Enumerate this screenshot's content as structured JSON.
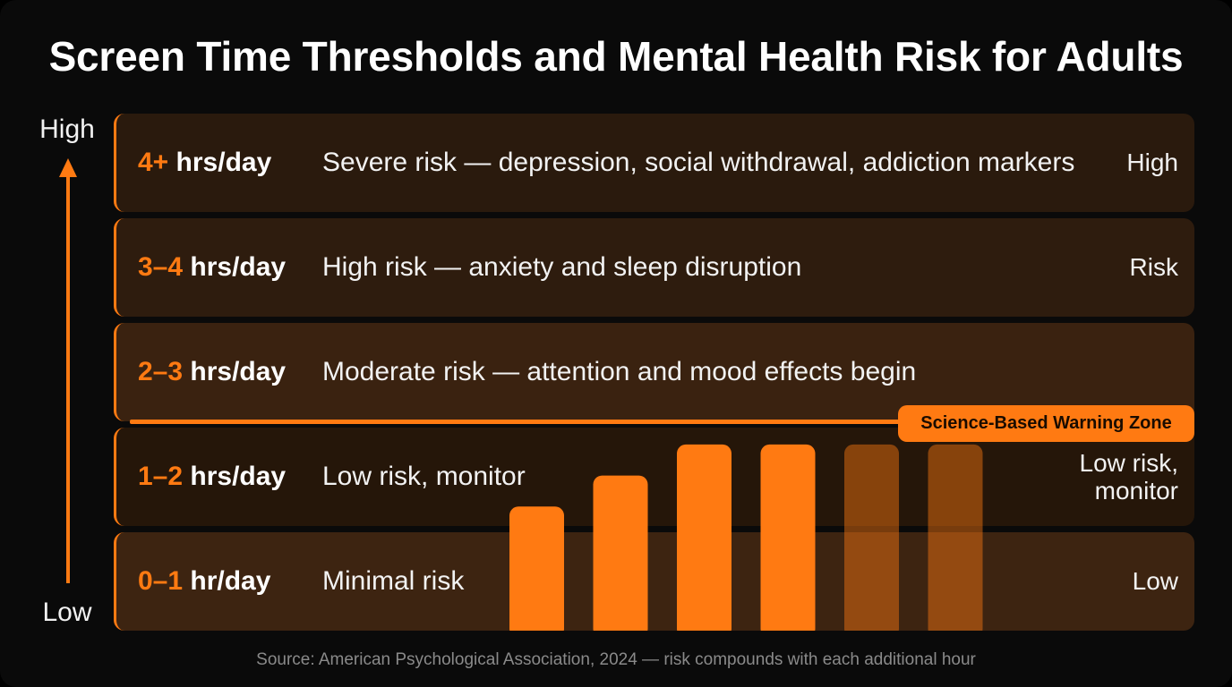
{
  "chart_data": {
    "type": "bar",
    "title": "Screen Time Thresholds and Mental Health Risk for Adults",
    "axis_labels": {
      "top": "High",
      "bottom": "Low"
    },
    "tiers": [
      {
        "range_num": "4+",
        "range_unit": " hrs/day",
        "description": "Severe risk — depression, social withdrawal, addiction markers",
        "level": [
          "High"
        ]
      },
      {
        "range_num": "3–4",
        "range_unit": " hrs/day",
        "description": "High risk — anxiety and sleep disruption",
        "level": [
          "Risk"
        ]
      },
      {
        "range_num": "2–3",
        "range_unit": " hrs/day",
        "description": "Moderate risk — attention and mood effects begin",
        "level": []
      },
      {
        "range_num": "1–2",
        "range_unit": " hrs/day",
        "description": "Low risk, monitor",
        "level": [
          "Low risk,",
          "monitor"
        ]
      },
      {
        "range_num": "0–1",
        "range_unit": " hr/day",
        "description": "Minimal risk",
        "level": [
          "Low"
        ]
      }
    ],
    "warning_zone_label": "Science-Based Warning Zone",
    "warning_threshold_hours": 2,
    "ylim": [
      0,
      5
    ],
    "values": [
      1.2,
      1.5,
      1.8,
      1.8,
      1.8,
      1.8
    ],
    "bar_opacity": [
      1,
      1,
      1,
      1,
      0.45,
      0.45
    ],
    "colors": {
      "accent": "#ff7a12",
      "tier_fills": [
        "#2a1a0d",
        "#2e1c0e",
        "#3a2210",
        "#251609",
        "#3d2411"
      ]
    },
    "source": "Source: American Psychological Association, 2024 — risk compounds with each additional hour"
  }
}
